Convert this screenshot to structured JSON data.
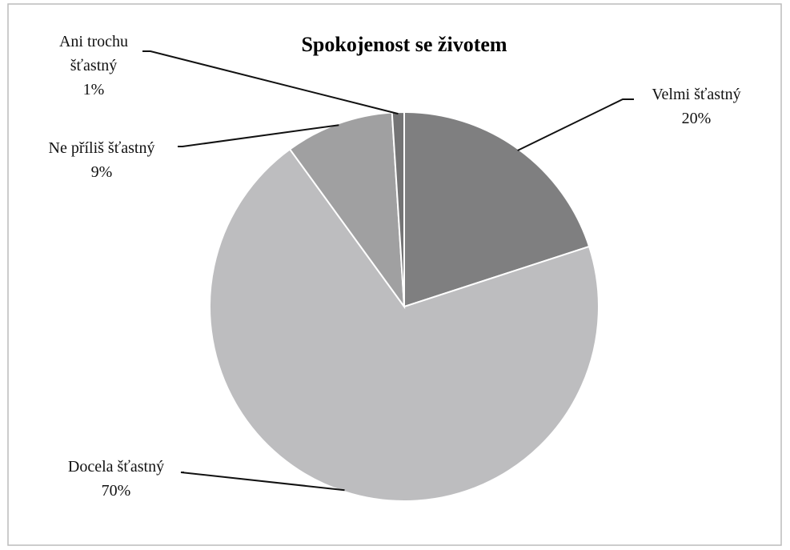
{
  "chart_data": {
    "type": "pie",
    "title": "Spokojenost se životem",
    "categories": [
      "Velmi šťastný",
      "Docela šťastný",
      "Ne příliš šťastný",
      "Ani trochu šťastný"
    ],
    "values": [
      20,
      70,
      9,
      1
    ],
    "value_labels": [
      "20%",
      "70%",
      "9%",
      "1%"
    ],
    "colors": [
      "#7f7f80",
      "#bdbdbf",
      "#a0a0a1",
      "#747475"
    ]
  }
}
